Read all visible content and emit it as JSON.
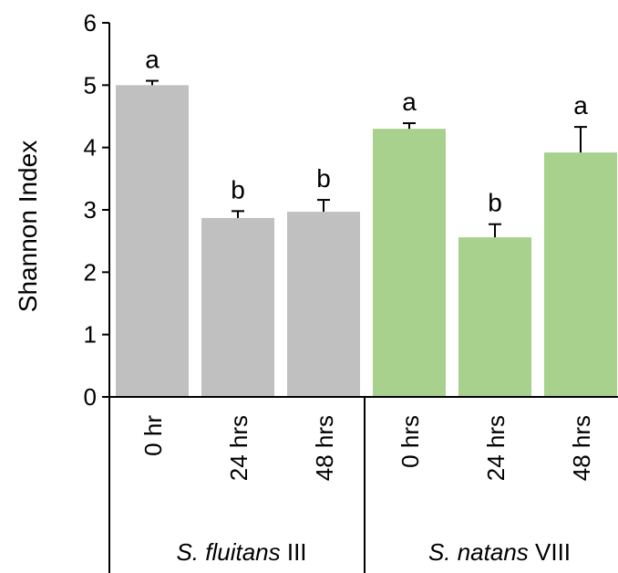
{
  "chart_data": {
    "type": "bar",
    "ylabel": "Shannon Index",
    "ylim": [
      0,
      6
    ],
    "yticks": [
      "0",
      "1",
      "2",
      "3",
      "4",
      "5",
      "6"
    ],
    "grid": false,
    "groups": [
      {
        "label_italic": "S. fluitans",
        "label_rest": " III",
        "color": "#c0c0c0",
        "bars": [
          {
            "category": "0 hr",
            "value": 5.0,
            "error": 0.07,
            "letter": "a"
          },
          {
            "category": "24 hrs",
            "value": 2.87,
            "error": 0.11,
            "letter": "b"
          },
          {
            "category": "48 hrs",
            "value": 2.97,
            "error": 0.19,
            "letter": "b"
          }
        ]
      },
      {
        "label_italic": "S. natans",
        "label_rest": " VIII",
        "color": "#a9d18e",
        "bars": [
          {
            "category": "0 hrs",
            "value": 4.3,
            "error": 0.09,
            "letter": "a"
          },
          {
            "category": "24 hrs",
            "value": 2.56,
            "error": 0.21,
            "letter": "b"
          },
          {
            "category": "48 hrs",
            "value": 3.92,
            "error": 0.41,
            "letter": "a"
          }
        ]
      }
    ]
  }
}
